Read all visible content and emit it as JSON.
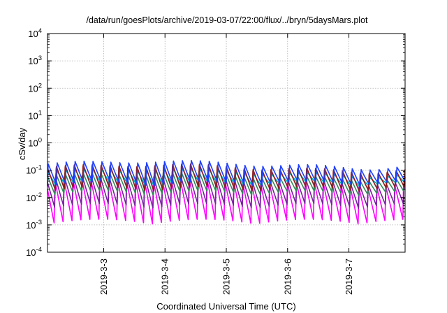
{
  "chart_data": {
    "type": "line",
    "title": "/data/run/goesPlots/archive/2019-03-07/22:00/flux/../bryn/5daysMars.plot",
    "xlabel": "Coordinated Universal Time (UTC)",
    "ylabel": "cSv/day",
    "y_scale": "log",
    "ylim": [
      0.0001,
      10000
    ],
    "y_ticks": [
      {
        "value": 0.0001,
        "base": "10",
        "exp": "-4"
      },
      {
        "value": 0.001,
        "base": "10",
        "exp": "-3"
      },
      {
        "value": 0.01,
        "base": "10",
        "exp": "-2"
      },
      {
        "value": 0.1,
        "base": "10",
        "exp": "-1"
      },
      {
        "value": 1,
        "base": "10",
        "exp": "0"
      },
      {
        "value": 10,
        "base": "10",
        "exp": "1"
      },
      {
        "value": 100,
        "base": "10",
        "exp": "2"
      },
      {
        "value": 1000,
        "base": "10",
        "exp": "3"
      },
      {
        "value": 10000,
        "base": "10",
        "exp": "4"
      }
    ],
    "x_start": "2019-03-02T02:00",
    "x_end": "2019-03-07T22:00",
    "x_ticks": [
      {
        "date": "2019-03-03T00:00",
        "label": "2019-3-3"
      },
      {
        "date": "2019-03-04T00:00",
        "label": "2019-3-4"
      },
      {
        "date": "2019-03-05T00:00",
        "label": "2019-3-5"
      },
      {
        "date": "2019-03-06T00:00",
        "label": "2019-3-6"
      },
      {
        "date": "2019-03-07T00:00",
        "label": "2019-3-7"
      }
    ],
    "grid": true,
    "legend": "none",
    "cycle_hours": 3.5,
    "series": [
      {
        "color": "#1f3fff",
        "peak": 0.17,
        "trough": 0.032,
        "lag": 0.0
      },
      {
        "color": "#8b1a1a",
        "peak": 0.13,
        "trough": 0.02,
        "lag": 0.1
      },
      {
        "color": "#00b5b5",
        "peak": 0.09,
        "trough": 0.03,
        "lag": 0.05
      },
      {
        "color": "#2e8b57",
        "peak": 0.07,
        "trough": 0.014,
        "lag": 0.15
      },
      {
        "color": "#7a1fa2",
        "peak": 0.05,
        "trough": 0.005,
        "lag": 0.2
      },
      {
        "color": "#ff00ff",
        "peak": 0.04,
        "trough": 0.0013,
        "lag": 0.25
      }
    ]
  }
}
